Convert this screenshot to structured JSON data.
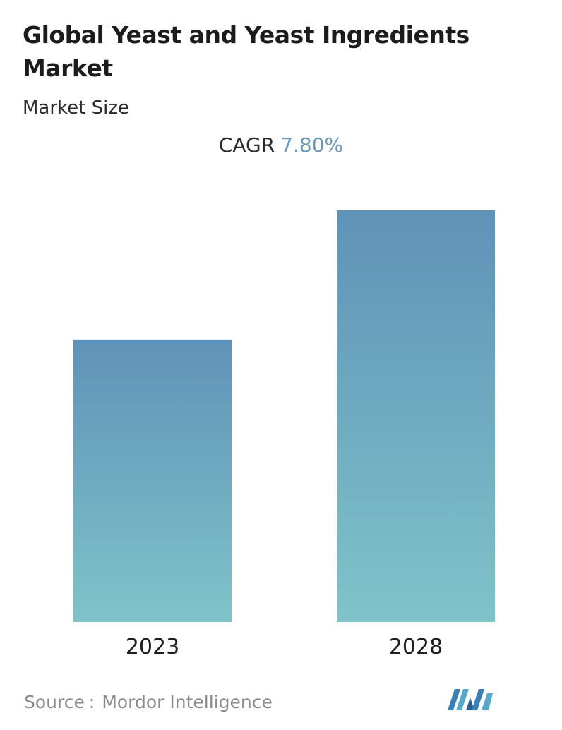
{
  "title": "Global Yeast and Yeast Ingredients Market",
  "subtitle": "Market Size",
  "cagr": {
    "label": "CAGR",
    "value": "7.80%"
  },
  "chart_data": {
    "type": "bar",
    "categories": [
      "2023",
      "2028"
    ],
    "values": [
      1.0,
      1.457
    ],
    "ylim": [
      0,
      1.5
    ],
    "grid": false,
    "colors": {
      "bar_top": "#5f92b8",
      "bar_bottom": "#80c3c9",
      "accent": "#6a97b8"
    }
  },
  "source": {
    "label": "Source",
    "separator": ":",
    "name": "Mordor Intelligence"
  },
  "logo": {
    "icon": "mordor-intelligence-logo-icon"
  }
}
